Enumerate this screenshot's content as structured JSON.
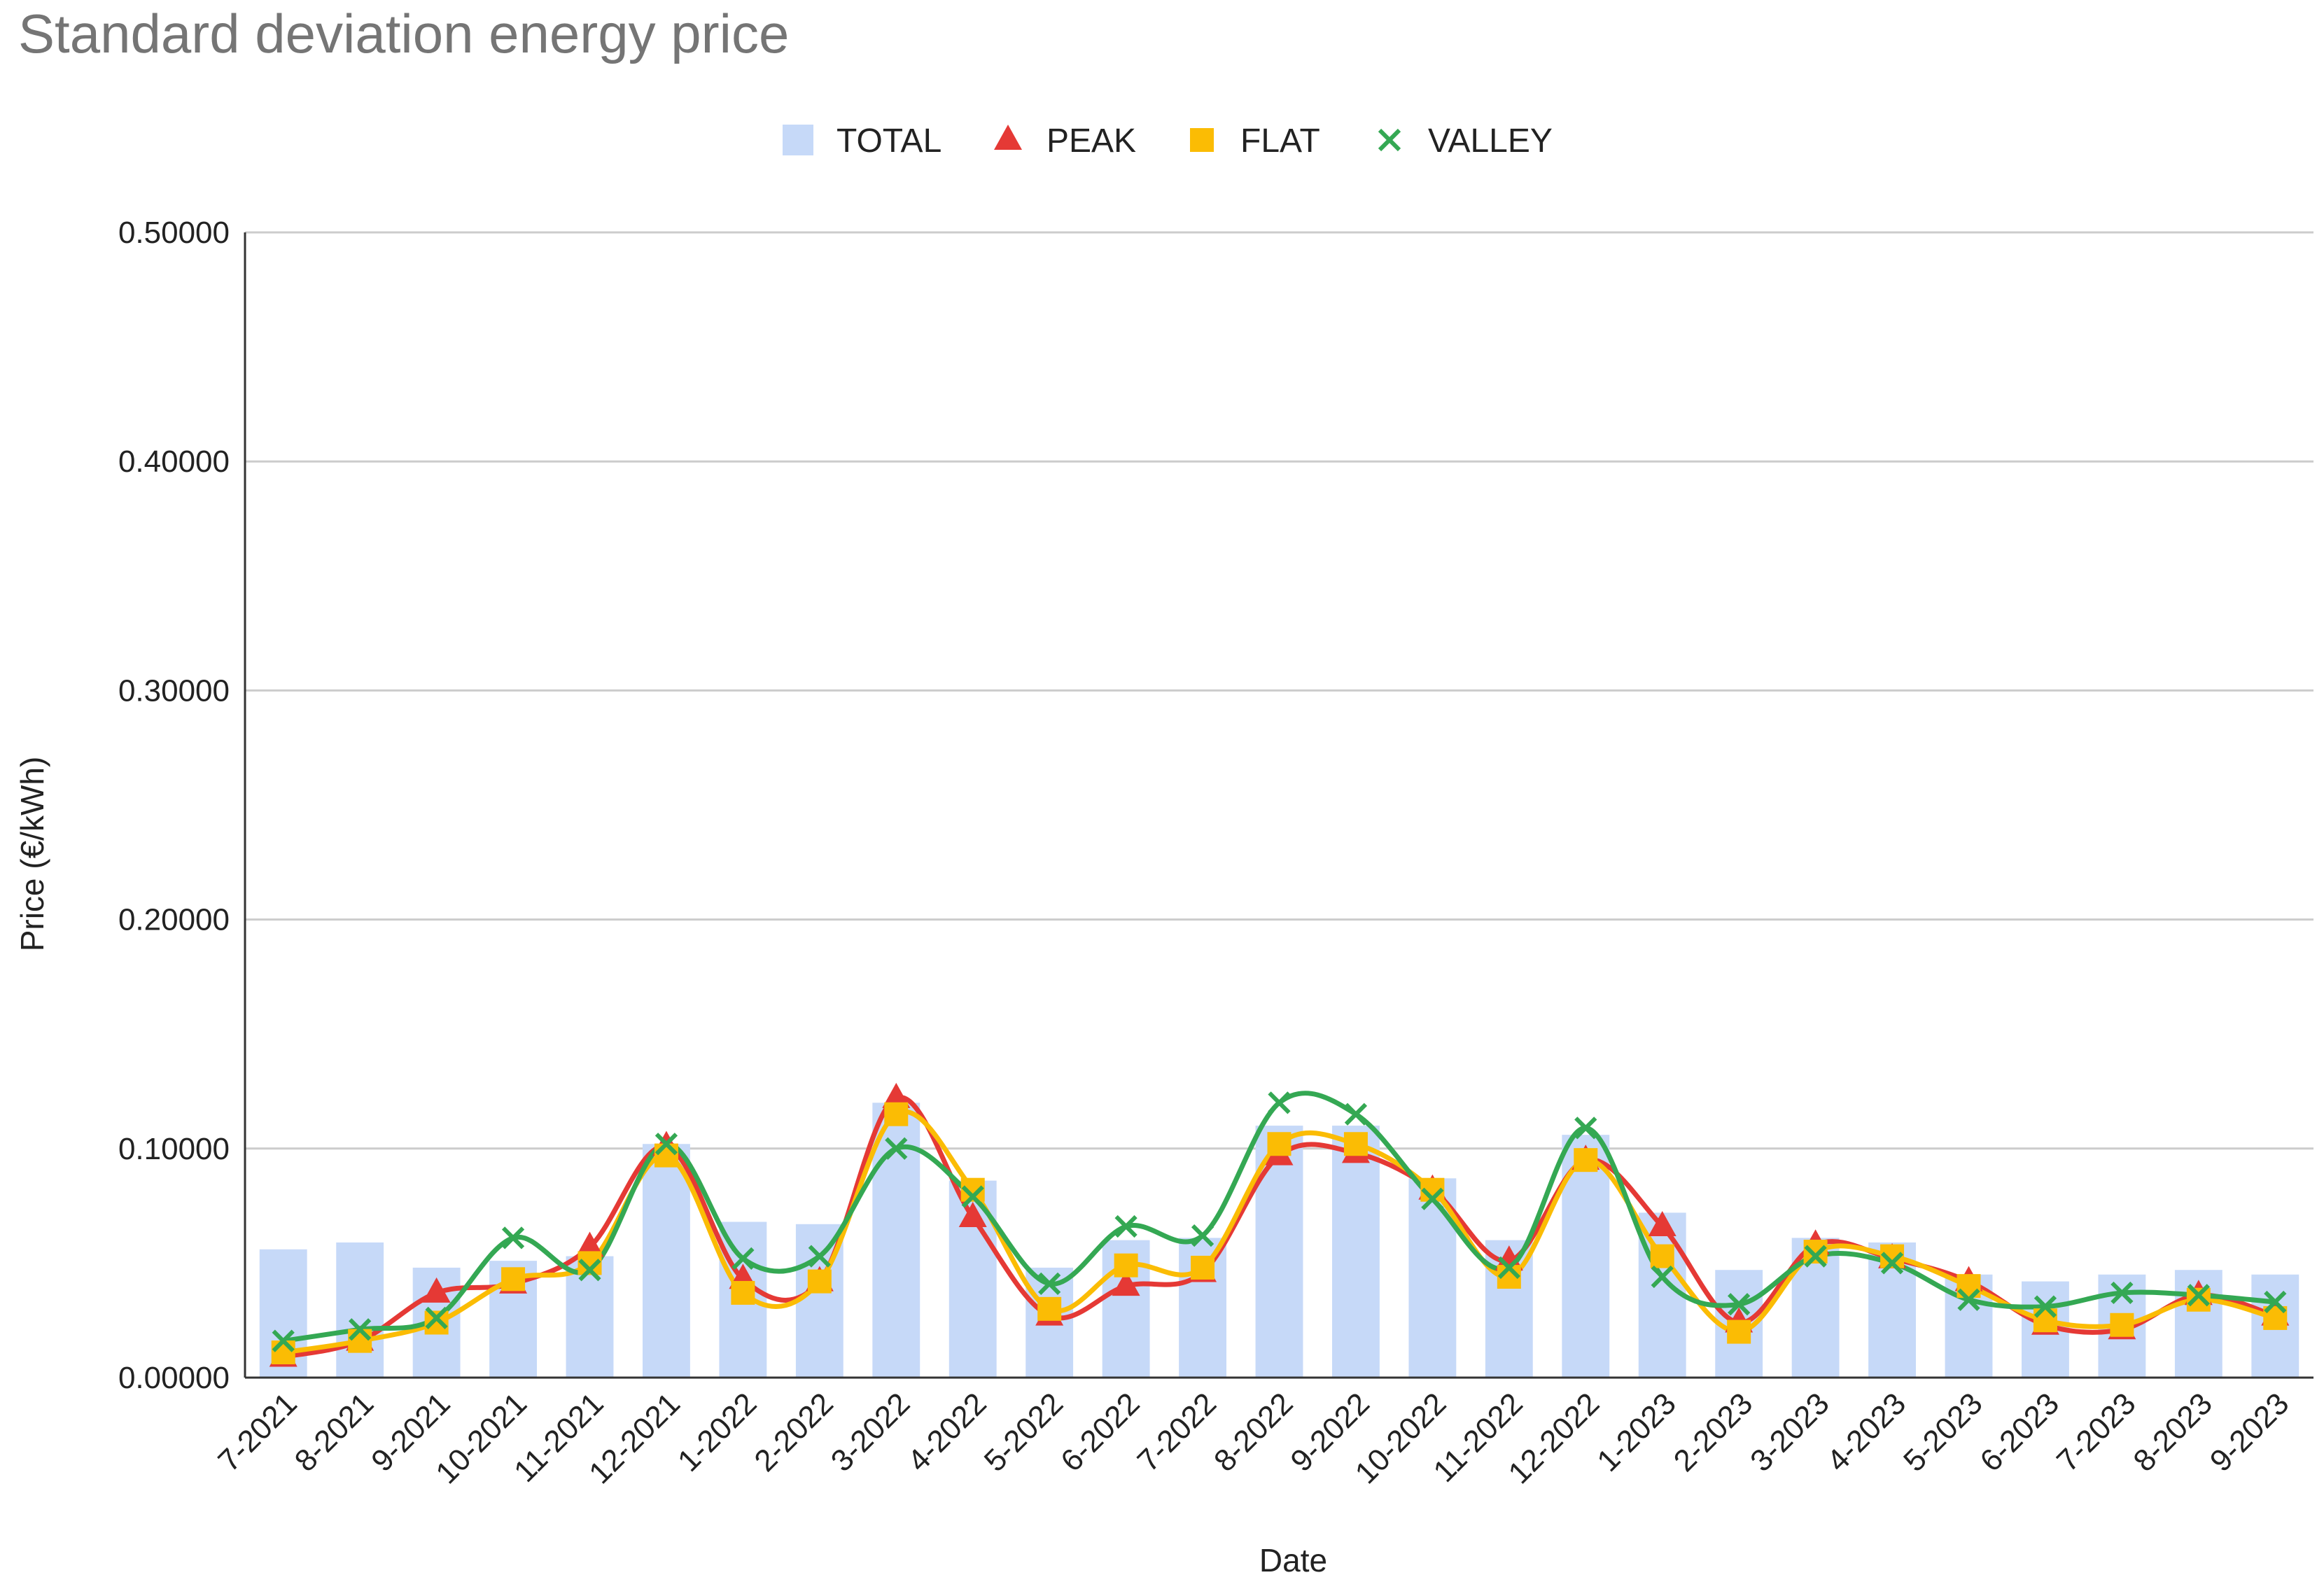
{
  "chart_data": {
    "type": "bar",
    "title": "Standard deviation energy price",
    "xlabel": "Date",
    "ylabel": "Price (€/kWh)",
    "ylim": [
      0,
      0.5
    ],
    "yticks": [
      "0.00000",
      "0.10000",
      "0.20000",
      "0.30000",
      "0.40000",
      "0.50000"
    ],
    "ytick_values": [
      0,
      0.1,
      0.2,
      0.3,
      0.4,
      0.5
    ],
    "grid": true,
    "legend_position": "top-center",
    "categories": [
      "7-2021",
      "8-2021",
      "9-2021",
      "10-2021",
      "11-2021",
      "12-2021",
      "1-2022",
      "2-2022",
      "3-2022",
      "4-2022",
      "5-2022",
      "6-2022",
      "7-2022",
      "8-2022",
      "9-2022",
      "10-2022",
      "11-2022",
      "12-2022",
      "1-2023",
      "2-2023",
      "3-2023",
      "4-2023",
      "5-2023",
      "6-2023",
      "7-2023",
      "8-2023",
      "9-2023"
    ],
    "series": [
      {
        "name": "TOTAL",
        "kind": "bar",
        "marker": "bar",
        "color": "#c6d9f8",
        "values": [
          0.056,
          0.059,
          0.048,
          0.051,
          0.053,
          0.102,
          0.068,
          0.067,
          0.12,
          0.086,
          0.048,
          0.06,
          0.061,
          0.11,
          0.11,
          0.087,
          0.06,
          0.106,
          0.072,
          0.047,
          0.061,
          0.059,
          0.045,
          0.042,
          0.045,
          0.047,
          0.045
        ]
      },
      {
        "name": "PEAK",
        "kind": "line",
        "marker": "triangle",
        "color": "#e53935",
        "values": [
          0.009,
          0.016,
          0.037,
          0.041,
          0.057,
          0.101,
          0.043,
          0.042,
          0.122,
          0.07,
          0.027,
          0.04,
          0.046,
          0.097,
          0.098,
          0.082,
          0.051,
          0.095,
          0.066,
          0.024,
          0.058,
          0.052,
          0.042,
          0.023,
          0.021,
          0.036,
          0.027
        ]
      },
      {
        "name": "FLAT",
        "kind": "line",
        "marker": "square",
        "color": "#fbbc04",
        "values": [
          0.011,
          0.016,
          0.024,
          0.043,
          0.05,
          0.097,
          0.037,
          0.042,
          0.115,
          0.082,
          0.03,
          0.049,
          0.048,
          0.102,
          0.102,
          0.082,
          0.044,
          0.095,
          0.053,
          0.02,
          0.055,
          0.053,
          0.04,
          0.025,
          0.023,
          0.034,
          0.026
        ]
      },
      {
        "name": "VALLEY",
        "kind": "line",
        "marker": "x",
        "color": "#34a853",
        "values": [
          0.016,
          0.021,
          0.026,
          0.061,
          0.047,
          0.102,
          0.052,
          0.053,
          0.1,
          0.079,
          0.041,
          0.066,
          0.062,
          0.12,
          0.115,
          0.078,
          0.048,
          0.109,
          0.044,
          0.032,
          0.053,
          0.05,
          0.034,
          0.031,
          0.037,
          0.036,
          0.033
        ]
      }
    ]
  }
}
